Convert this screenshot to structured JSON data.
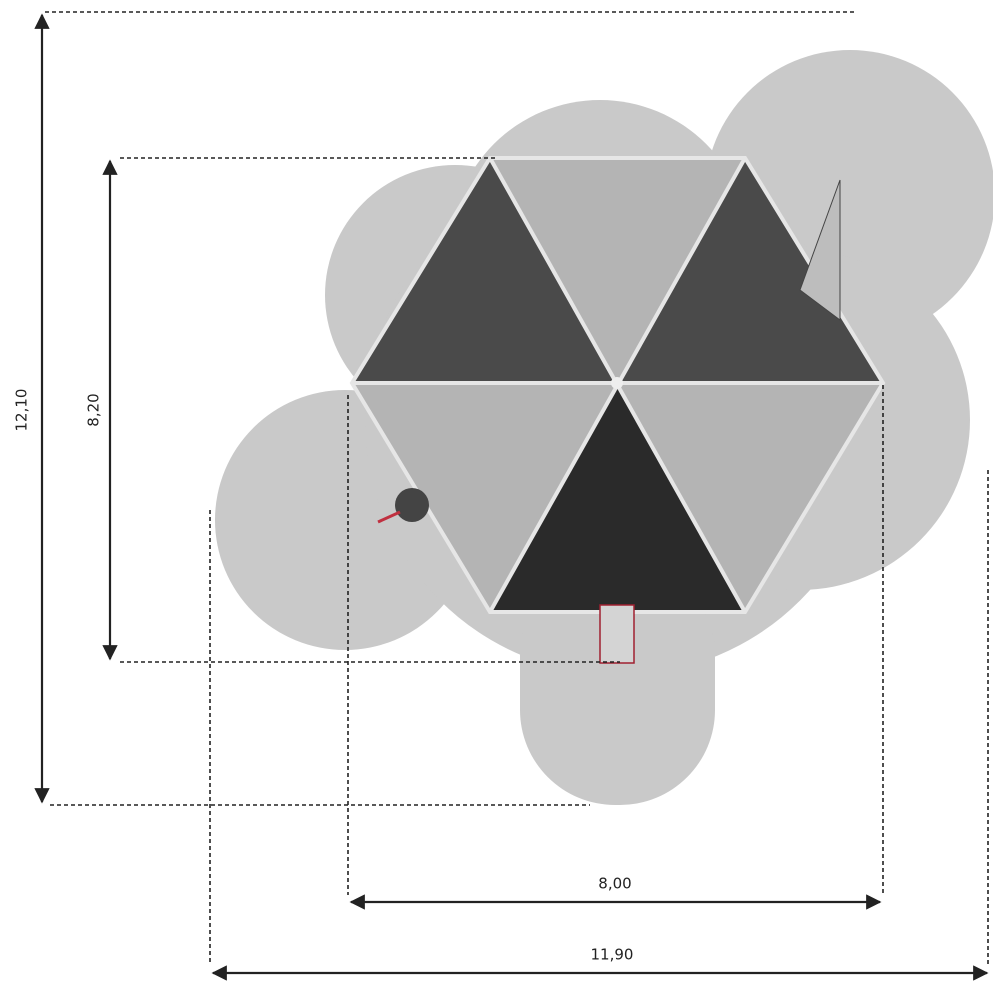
{
  "dimensions": {
    "outer_height": "12,10",
    "inner_height": "8,20",
    "inner_width": "8,00",
    "outer_width": "11,90"
  }
}
